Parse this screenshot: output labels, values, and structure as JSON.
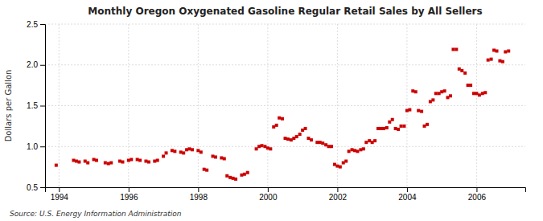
{
  "chart_data": {
    "type": "scatter",
    "title": "Monthly Oregon Oxygenated Gasoline Regular Retail Sales by All Sellers",
    "y_label": "Dollars per Gallon",
    "annotations": [
      "Source: U.S. Energy Information Administration"
    ],
    "color": "#cc0000",
    "marker": "square",
    "grid": true,
    "xlim": [
      1993.6,
      2007.4
    ],
    "ylim": [
      0.5,
      2.5
    ],
    "xticks": [
      1994,
      1996,
      1998,
      2000,
      2002,
      2004,
      2006
    ],
    "yticks": [
      0.5,
      {
        "value": 1.0,
        "label": "1.0"
      },
      1.5,
      {
        "value": 2.0,
        "label": "2.0"
      },
      2.5
    ],
    "x": [
      1993.92,
      1994.42,
      1994.5,
      1994.58,
      1994.75,
      1994.83,
      1995.0,
      1995.08,
      1995.33,
      1995.42,
      1995.5,
      1995.75,
      1995.83,
      1996.0,
      1996.08,
      1996.25,
      1996.33,
      1996.5,
      1996.58,
      1996.75,
      1996.83,
      1997.0,
      1997.08,
      1997.25,
      1997.33,
      1997.5,
      1997.58,
      1997.67,
      1997.75,
      1997.83,
      1998.0,
      1998.08,
      1998.17,
      1998.25,
      1998.42,
      1998.5,
      1998.67,
      1998.75,
      1998.83,
      1998.92,
      1999.0,
      1999.08,
      1999.25,
      1999.33,
      1999.42,
      1999.67,
      1999.75,
      1999.83,
      1999.92,
      2000.0,
      2000.08,
      2000.17,
      2000.25,
      2000.33,
      2000.42,
      2000.5,
      2000.58,
      2000.67,
      2000.75,
      2000.83,
      2000.92,
      2001.0,
      2001.08,
      2001.17,
      2001.25,
      2001.42,
      2001.5,
      2001.58,
      2001.67,
      2001.75,
      2001.83,
      2001.92,
      2002.0,
      2002.08,
      2002.17,
      2002.25,
      2002.33,
      2002.42,
      2002.5,
      2002.58,
      2002.67,
      2002.75,
      2002.83,
      2002.92,
      2003.0,
      2003.08,
      2003.17,
      2003.25,
      2003.33,
      2003.42,
      2003.5,
      2003.58,
      2003.67,
      2003.75,
      2003.83,
      2003.92,
      2004.0,
      2004.08,
      2004.17,
      2004.25,
      2004.33,
      2004.42,
      2004.5,
      2004.58,
      2004.67,
      2004.75,
      2004.83,
      2004.92,
      2005.0,
      2005.08,
      2005.17,
      2005.25,
      2005.33,
      2005.42,
      2005.5,
      2005.58,
      2005.67,
      2005.75,
      2005.83,
      2005.92,
      2006.0,
      2006.08,
      2006.17,
      2006.25,
      2006.33,
      2006.42,
      2006.5,
      2006.58,
      2006.67,
      2006.75,
      2006.83,
      2006.92
    ],
    "values": [
      0.77,
      0.83,
      0.82,
      0.81,
      0.82,
      0.8,
      0.84,
      0.83,
      0.8,
      0.79,
      0.8,
      0.82,
      0.81,
      0.83,
      0.84,
      0.84,
      0.83,
      0.82,
      0.81,
      0.82,
      0.83,
      0.88,
      0.92,
      0.95,
      0.94,
      0.93,
      0.92,
      0.96,
      0.97,
      0.96,
      0.95,
      0.93,
      0.72,
      0.71,
      0.88,
      0.87,
      0.86,
      0.85,
      0.64,
      0.62,
      0.61,
      0.6,
      0.65,
      0.66,
      0.68,
      0.97,
      1.0,
      1.01,
      1.0,
      0.98,
      0.97,
      1.24,
      1.26,
      1.35,
      1.34,
      1.1,
      1.09,
      1.08,
      1.1,
      1.12,
      1.15,
      1.2,
      1.22,
      1.1,
      1.08,
      1.05,
      1.05,
      1.04,
      1.02,
      1.0,
      1.0,
      0.78,
      0.76,
      0.75,
      0.8,
      0.82,
      0.94,
      0.96,
      0.95,
      0.94,
      0.96,
      0.97,
      1.05,
      1.07,
      1.05,
      1.07,
      1.22,
      1.22,
      1.22,
      1.23,
      1.3,
      1.33,
      1.22,
      1.21,
      1.25,
      1.25,
      1.44,
      1.45,
      1.68,
      1.67,
      1.44,
      1.43,
      1.25,
      1.27,
      1.55,
      1.57,
      1.65,
      1.65,
      1.67,
      1.68,
      1.6,
      1.62,
      2.19,
      2.19,
      1.95,
      1.93,
      1.9,
      1.75,
      1.75,
      1.65,
      1.65,
      1.63,
      1.65,
      1.66,
      2.06,
      2.07,
      2.18,
      2.17,
      2.05,
      2.04,
      2.16,
      2.17
    ]
  }
}
